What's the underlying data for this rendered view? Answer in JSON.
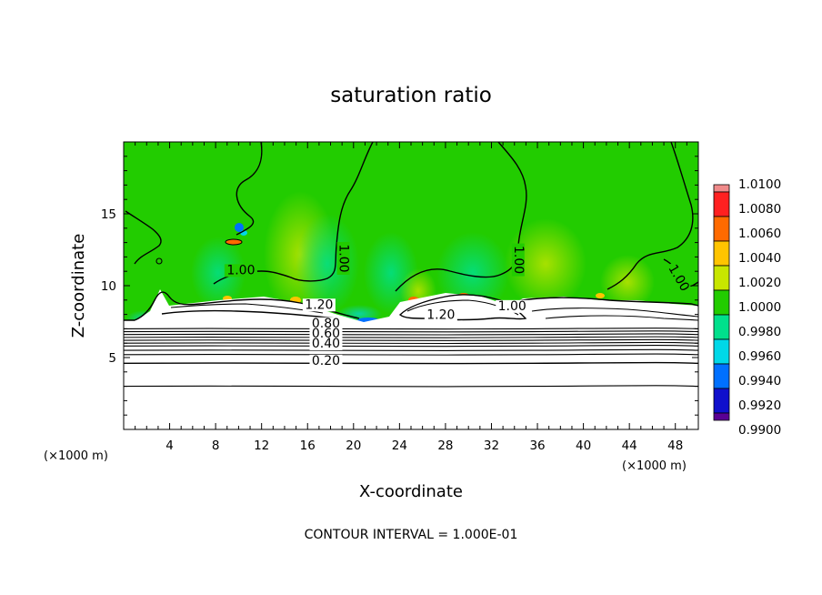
{
  "chart_data": {
    "type": "heatmap",
    "title": "saturation ratio",
    "xlabel": "X-coordinate",
    "ylabel": "Z-coordinate",
    "x_unit_label": "(×1000 m)",
    "x_unit_label_right": "(×1000 m)",
    "xlim": [
      0,
      50
    ],
    "ylim": [
      0,
      20
    ],
    "x_ticks": [
      "4",
      "8",
      "12",
      "16",
      "20",
      "24",
      "28",
      "32",
      "36",
      "40",
      "44",
      "48"
    ],
    "x_tick_values": [
      4,
      8,
      12,
      16,
      20,
      24,
      28,
      32,
      36,
      40,
      44,
      48
    ],
    "y_ticks": [
      "5",
      "10",
      "15"
    ],
    "y_tick_values": [
      5,
      10,
      15
    ],
    "footer": "CONTOUR INTERVAL = 1.000E-01",
    "colorbar": {
      "labels": [
        "1.0100",
        "1.0080",
        "1.0060",
        "1.0040",
        "1.0020",
        "1.0000",
        "0.9980",
        "0.9960",
        "0.9940",
        "0.9920",
        "0.9900"
      ],
      "colors": [
        "#f08a8a",
        "#ff2020",
        "#ff6a00",
        "#ffc400",
        "#c8e600",
        "#22cc00",
        "#00e08c",
        "#00d8e8",
        "#0070ff",
        "#1010cc",
        "#5a0094"
      ],
      "min": 0.99,
      "max": 1.01
    },
    "contour_labels": [
      {
        "text": "1.00",
        "x": 10.2,
        "y": 10.8
      },
      {
        "text": "1.00",
        "x": 18.8,
        "y": 11.9
      },
      {
        "text": "1.00",
        "x": 34.0,
        "y": 11.8
      },
      {
        "text": "1.00",
        "x": 48.0,
        "y": 10.4
      },
      {
        "text": "1.20",
        "x": 17.0,
        "y": 8.4
      },
      {
        "text": "1.20",
        "x": 27.6,
        "y": 7.7
      },
      {
        "text": "1.00",
        "x": 33.8,
        "y": 8.3
      },
      {
        "text": "0.80",
        "x": 17.6,
        "y": 7.1
      },
      {
        "text": "0.60",
        "x": 17.6,
        "y": 6.4
      },
      {
        "text": "0.40",
        "x": 17.6,
        "y": 5.7
      },
      {
        "text": "0.20",
        "x": 17.6,
        "y": 4.5
      }
    ],
    "stable_layer_contours_z": [
      7.0,
      6.8,
      6.6,
      6.4,
      6.2,
      6.0,
      5.8,
      5.5,
      5.2,
      4.6,
      3.0
    ],
    "ground_region_colored": false,
    "background_color": "#22cc00"
  }
}
